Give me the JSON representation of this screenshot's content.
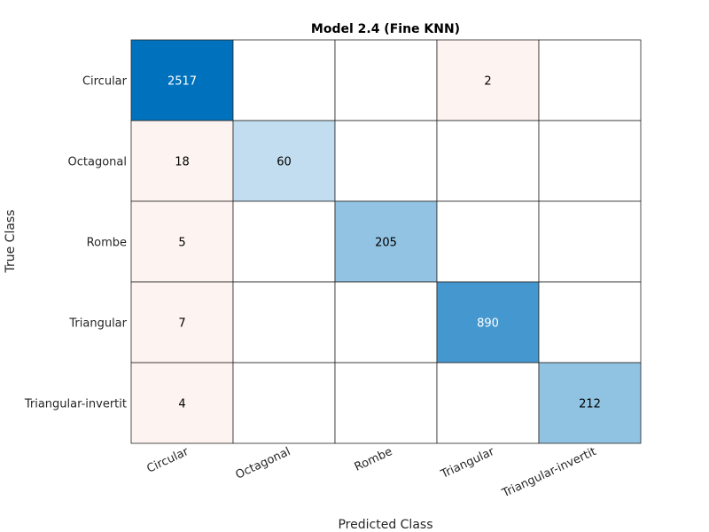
{
  "chart_data": {
    "type": "heatmap",
    "title": "Model 2.4 (Fine KNN)",
    "xlabel": "Predicted Class",
    "ylabel": "True Class",
    "x_categories": [
      "Circular",
      "Octagonal",
      "Rombe",
      "Triangular",
      "Triangular-invertit"
    ],
    "y_categories": [
      "Circular",
      "Octagonal",
      "Rombe",
      "Triangular",
      "Triangular-invertit"
    ],
    "matrix": [
      [
        2517,
        0,
        0,
        2,
        0
      ],
      [
        18,
        60,
        0,
        0,
        0
      ],
      [
        5,
        0,
        205,
        0,
        0
      ],
      [
        7,
        0,
        0,
        890,
        0
      ],
      [
        4,
        0,
        0,
        0,
        212
      ]
    ],
    "colors": {
      "correct_max": "#0072bd",
      "correct_min": "#ffffff",
      "incorrect": "#fdf3f0",
      "grid": "#262626"
    }
  }
}
